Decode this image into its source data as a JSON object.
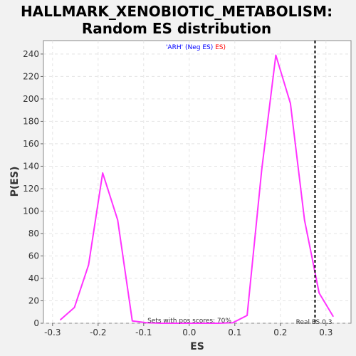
{
  "chart_data": {
    "type": "line",
    "title_line1": "HALLMARK_XENOBIOTIC_METABOLISM:",
    "title_line2": "Random ES distribution",
    "xlabel": "ES",
    "ylabel": "P(ES)",
    "xlim": [
      -0.32,
      0.355
    ],
    "ylim": [
      0,
      252
    ],
    "x_ticks": [
      "-0.3",
      "-0.2",
      "-0.1",
      "0.0",
      "0.1",
      "0.2",
      "0.3"
    ],
    "x_tick_values": [
      -0.3,
      -0.2,
      -0.1,
      0.0,
      0.1,
      0.2,
      0.3
    ],
    "y_ticks": [
      "0",
      "20",
      "40",
      "60",
      "80",
      "100",
      "120",
      "140",
      "160",
      "180",
      "200",
      "220",
      "240"
    ],
    "y_tick_values": [
      0,
      20,
      40,
      60,
      80,
      100,
      120,
      140,
      160,
      180,
      200,
      220,
      240
    ],
    "grid": true,
    "series": [
      {
        "color": "#ff33ff",
        "x": [
          -0.283,
          -0.252,
          -0.221,
          -0.19,
          -0.157,
          -0.125,
          -0.094,
          -0.062,
          -0.03,
          0.0,
          0.032,
          0.064,
          0.096,
          0.127,
          0.159,
          0.19,
          0.222,
          0.253,
          0.285,
          0.316
        ],
        "y": [
          3,
          14,
          52,
          134,
          92,
          2,
          0.5,
          0,
          0,
          0,
          0,
          0,
          0.5,
          7,
          137,
          239,
          196,
          92,
          27,
          6
        ]
      }
    ],
    "real_es": 0.276,
    "legend": {
      "gene_set": "'ARH'",
      "neg_text": "(Neg ES)",
      "pos_text": "ES)",
      "gene_set_color": "#0000ff",
      "neg_color": "#0000ff",
      "pos_color": "#ff0000"
    },
    "annotations": {
      "pos_scores": "Sets with pos scores: 70%",
      "real_es_label": "Real ES 0.3"
    }
  }
}
